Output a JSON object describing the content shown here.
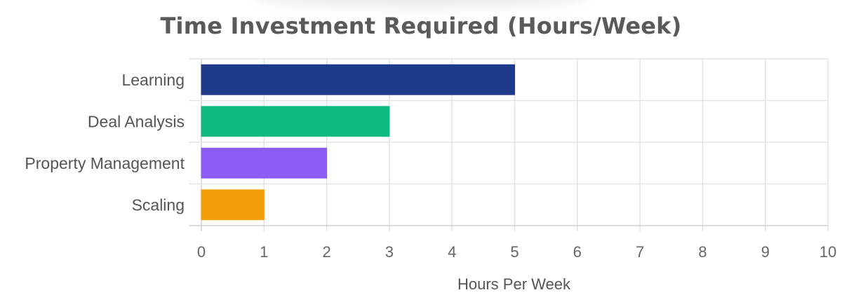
{
  "chart_data": {
    "type": "bar",
    "orientation": "horizontal",
    "title": "Time Investment Required (Hours/Week)",
    "categories": [
      "Learning",
      "Deal Analysis",
      "Property Management",
      "Scaling"
    ],
    "values": [
      5,
      3,
      2,
      1
    ],
    "colors": [
      "#1f3a8a",
      "#10b981",
      "#8b5cf6",
      "#f59e0b"
    ],
    "xlabel": "Hours Per Week",
    "ylabel": "",
    "xlim": [
      0,
      10
    ],
    "xticks": [
      "0",
      "1",
      "2",
      "3",
      "4",
      "5",
      "6",
      "7",
      "8",
      "9",
      "10"
    ],
    "grid": true,
    "legend": "none"
  }
}
